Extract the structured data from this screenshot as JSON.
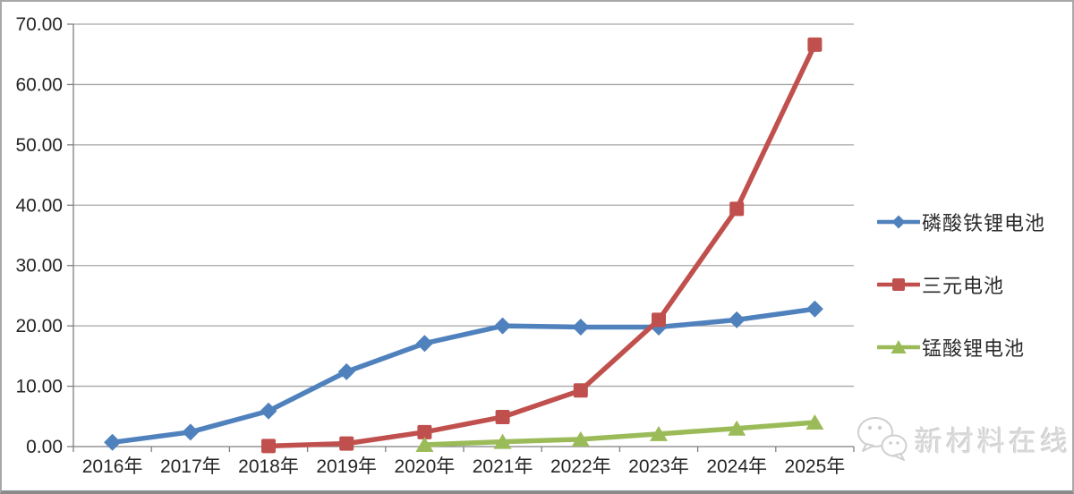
{
  "watermark": {
    "text": "新材料在线",
    "icon": "wechat-icon"
  },
  "chart_data": {
    "type": "line",
    "categories": [
      "2016年",
      "2017年",
      "2018年",
      "2019年",
      "2020年",
      "2021年",
      "2022年",
      "2023年",
      "2024年",
      "2025年"
    ],
    "series": [
      {
        "name": "磷酸铁锂电池",
        "marker": "diamond",
        "color": "#4F81BD",
        "values": [
          0.7,
          2.4,
          5.9,
          12.4,
          17.1,
          20.0,
          19.8,
          19.8,
          21.0,
          22.8
        ]
      },
      {
        "name": "三元电池",
        "marker": "square",
        "color": "#C0504D",
        "values": [
          null,
          null,
          0.1,
          0.5,
          2.4,
          4.9,
          9.3,
          21.0,
          39.4,
          66.6
        ]
      },
      {
        "name": "锰酸锂电池",
        "marker": "triangle",
        "color": "#9BBB59",
        "values": [
          null,
          null,
          null,
          null,
          0.3,
          0.8,
          1.2,
          2.1,
          3.0,
          4.0
        ]
      }
    ],
    "title": "",
    "xlabel": "",
    "ylabel": "",
    "ylim": [
      0,
      70
    ],
    "ytick_step": 10,
    "ytick_labels": [
      "0.00",
      "10.00",
      "20.00",
      "30.00",
      "40.00",
      "50.00",
      "60.00",
      "70.00"
    ],
    "grid": true,
    "legend_position": "right",
    "colors": {
      "grid": "#A6A6A6",
      "axis": "#7F7F7F",
      "text": "#262626",
      "watermark": "#D0D0D0"
    }
  }
}
